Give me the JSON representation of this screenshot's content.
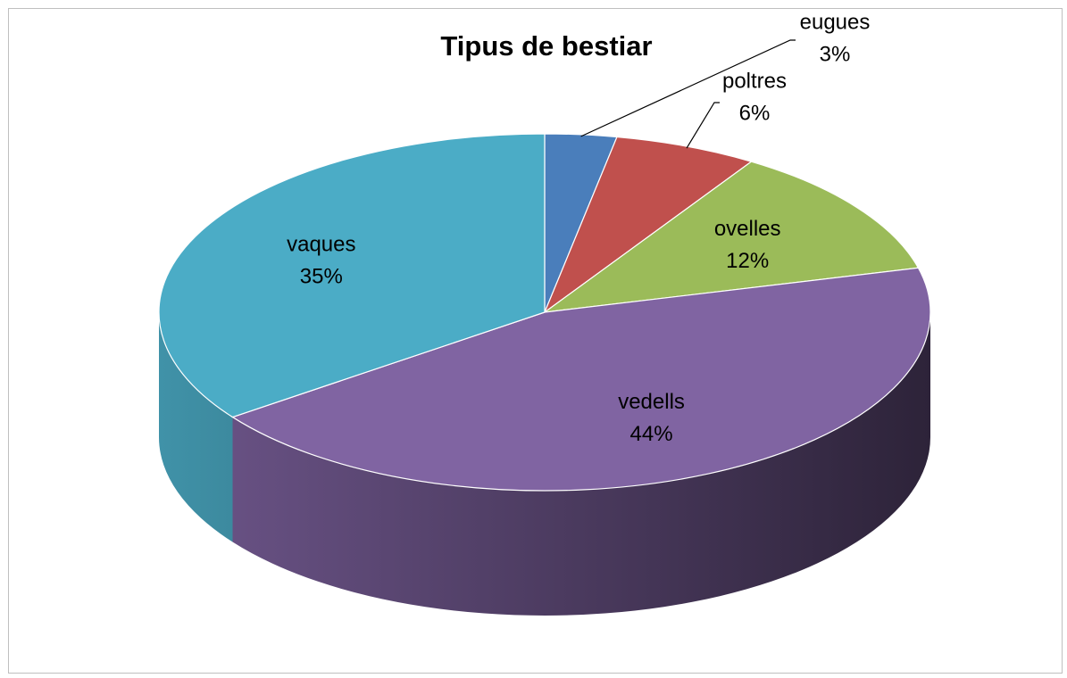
{
  "chart_data": {
    "type": "pie",
    "title": "Tipus de bestiar",
    "categories": [
      "eugues",
      "poltres",
      "ovelles",
      "vedells",
      "vaques"
    ],
    "values": [
      3,
      6,
      12,
      44,
      35
    ],
    "value_labels": [
      "3%",
      "6%",
      "12%",
      "44%",
      "35%"
    ],
    "colors": [
      "#4a7ebb",
      "#c0504d",
      "#9bbb59",
      "#8064a2",
      "#4bacc6"
    ]
  }
}
